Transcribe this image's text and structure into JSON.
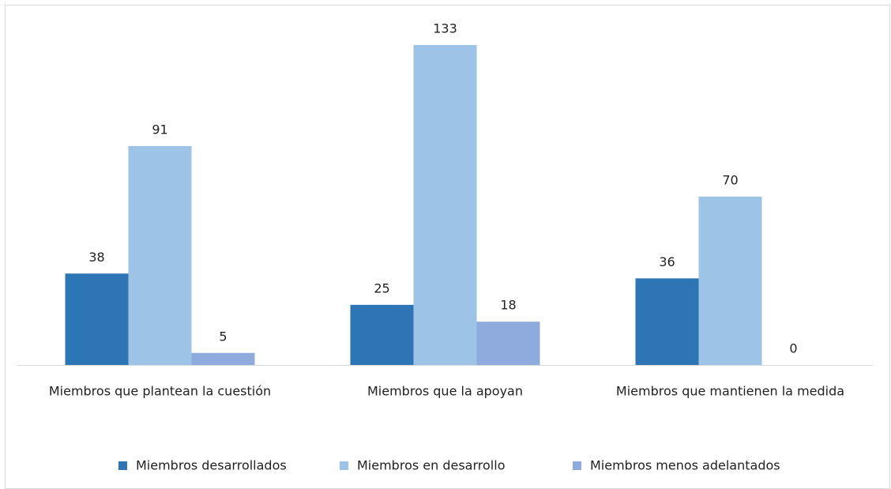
{
  "chart_data": {
    "type": "bar",
    "categories": [
      "Miembros que plantean la cuestión",
      "Miembros que la apoyan",
      "Miembros que mantienen la medida"
    ],
    "series": [
      {
        "name": "Miembros desarrollados",
        "color": "#2e75b6",
        "values": [
          38,
          25,
          36
        ]
      },
      {
        "name": "Miembros en desarrollo",
        "color": "#9dc3e6",
        "values": [
          91,
          133,
          70
        ]
      },
      {
        "name": "Miembros menos adelantados",
        "color": "#8faadc",
        "values": [
          5,
          18,
          0
        ]
      }
    ],
    "legend": "bottom"
  }
}
